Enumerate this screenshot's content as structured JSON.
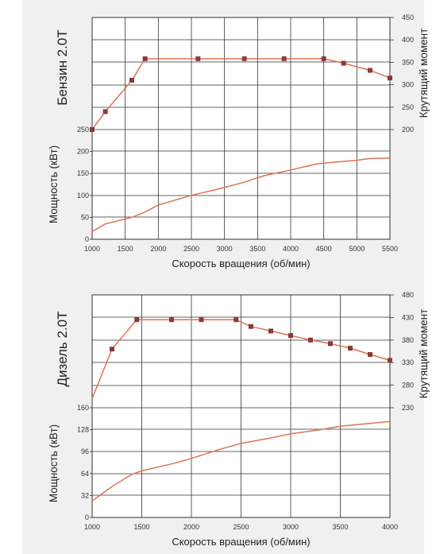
{
  "colors": {
    "background": "#f0f0f0",
    "plot_area": "#ffffff",
    "grid": "#333333",
    "curve": "#d9735a",
    "marker": "#8b3a3a"
  },
  "chart_data": [
    {
      "type": "line",
      "title": "Бензин 2.0T",
      "xlabel": "Скорость вращения (об/мин)",
      "xlim": [
        1000,
        5500
      ],
      "x_ticks": [
        "1000",
        "1500",
        "2000",
        "2500",
        "3000",
        "3500",
        "4000",
        "4500",
        "5000",
        "5500"
      ],
      "torque_axis": {
        "label": "Крутящий момент",
        "range": [
          200,
          450
        ],
        "ticks": [
          "200",
          "250",
          "300",
          "350",
          "400",
          "450"
        ]
      },
      "power_axis": {
        "label": "Мощность (кВт)",
        "range": [
          0,
          250
        ],
        "ticks": [
          "0",
          "50",
          "100",
          "150",
          "200",
          "250"
        ]
      },
      "grid": true,
      "series": [
        {
          "axis": "torque",
          "markers": true,
          "x": [
            1000,
            1200,
            1600,
            1800,
            2600,
            3300,
            3900,
            4500,
            4800,
            5200,
            5500
          ],
          "values": [
            200,
            240,
            310,
            358,
            358,
            358,
            358,
            358,
            348,
            332,
            315
          ]
        },
        {
          "axis": "power",
          "markers": false,
          "x": [
            1000,
            1200,
            1600,
            1800,
            2000,
            2500,
            3000,
            3300,
            3600,
            4000,
            4400,
            4700,
            5000,
            5200,
            5500
          ],
          "values": [
            18,
            35,
            50,
            62,
            78,
            100,
            118,
            130,
            145,
            158,
            172,
            176,
            180,
            184,
            185
          ]
        }
      ]
    },
    {
      "type": "line",
      "title": "Дизель 2.0T",
      "xlabel": "Скорость вращения (об/мин)",
      "xlim": [
        1000,
        4000
      ],
      "x_ticks": [
        "1000",
        "1500",
        "2000",
        "2500",
        "3000",
        "3500",
        "4000"
      ],
      "torque_axis": {
        "label": "Крутящий момент",
        "range": [
          230,
          480
        ],
        "ticks": [
          "230",
          "280",
          "330",
          "380",
          "430",
          "480"
        ]
      },
      "power_axis": {
        "label": "Мощность (кВт)",
        "range": [
          0,
          160
        ],
        "ticks": [
          "0",
          "32",
          "64",
          "96",
          "128",
          "160"
        ]
      },
      "grid": true,
      "series": [
        {
          "axis": "torque",
          "markers": false,
          "x": [
            1000,
            1200
          ],
          "values": [
            250,
            360
          ]
        },
        {
          "axis": "torque",
          "markers": true,
          "x": [
            1200,
            1450,
            1800,
            2100,
            2450,
            2600,
            2800,
            3000,
            3200,
            3400,
            3600,
            3800,
            4000
          ],
          "values": [
            360,
            425,
            425,
            425,
            425,
            410,
            400,
            390,
            380,
            372,
            362,
            348,
            335
          ]
        },
        {
          "axis": "power",
          "markers": false,
          "x": [
            1000,
            1200,
            1400,
            1500,
            1800,
            2000,
            2300,
            2500,
            2800,
            3000,
            3300,
            3500,
            4000
          ],
          "values": [
            24,
            45,
            63,
            68,
            78,
            86,
            100,
            108,
            116,
            122,
            128,
            133,
            140
          ]
        }
      ]
    }
  ]
}
